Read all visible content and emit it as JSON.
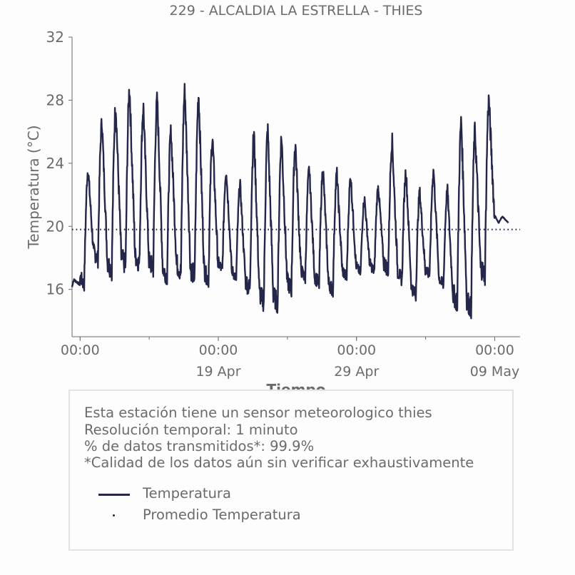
{
  "chart_data": {
    "type": "line",
    "title": "229 - ALCALDIA LA ESTRELLA - THIES",
    "xlabel": "Tiempo",
    "ylabel": "Temperatura (°C)",
    "ylim": [
      13,
      32
    ],
    "yticks": [
      16,
      20,
      24,
      28,
      32
    ],
    "x_start_day": "2024-04-09 10:00",
    "x_end_day": "2024-05-11 20:00",
    "xticks": [
      {
        "label": "00:00",
        "sublabel": "",
        "x": "2024-04-10 00:00"
      },
      {
        "label": "00:00",
        "sublabel": "19 Apr",
        "x": "2024-04-20 00:00"
      },
      {
        "label": "00:00",
        "sublabel": "29 Apr",
        "x": "2024-04-30 00:00"
      },
      {
        "label": "00:00",
        "sublabel": "09 May",
        "x": "2024-05-10 00:00"
      },
      {
        "label": "00:00",
        "sublabel": "",
        "x": "2024-05-20 00:00"
      }
    ],
    "series": [
      {
        "name": "Temperatura",
        "color": "#24264a",
        "daily": [
          {
            "day": "2024-04-09",
            "min": 15.4,
            "max": 16.6
          },
          {
            "day": "2024-04-10",
            "min": 16.3,
            "max": 23.6
          },
          {
            "day": "2024-04-11",
            "min": 17.9,
            "max": 26.6
          },
          {
            "day": "2024-04-12",
            "min": 17.2,
            "max": 27.6
          },
          {
            "day": "2024-04-13",
            "min": 17.5,
            "max": 28.7
          },
          {
            "day": "2024-04-14",
            "min": 17.6,
            "max": 27.5
          },
          {
            "day": "2024-04-15",
            "min": 17.3,
            "max": 28.0
          },
          {
            "day": "2024-04-16",
            "min": 16.8,
            "max": 26.0
          },
          {
            "day": "2024-04-17",
            "min": 17.1,
            "max": 28.6
          },
          {
            "day": "2024-04-18",
            "min": 16.8,
            "max": 28.3
          },
          {
            "day": "2024-04-19",
            "min": 16.6,
            "max": 25.5
          },
          {
            "day": "2024-04-20",
            "min": 17.2,
            "max": 23.5
          },
          {
            "day": "2024-04-21",
            "min": 16.7,
            "max": 22.6
          },
          {
            "day": "2024-04-22",
            "min": 16.0,
            "max": 25.8
          },
          {
            "day": "2024-04-23",
            "min": 15.2,
            "max": 26.0
          },
          {
            "day": "2024-04-24",
            "min": 15.1,
            "max": 25.6
          },
          {
            "day": "2024-04-25",
            "min": 16.0,
            "max": 25.2
          },
          {
            "day": "2024-04-26",
            "min": 16.7,
            "max": 23.6
          },
          {
            "day": "2024-04-27",
            "min": 16.3,
            "max": 23.6
          },
          {
            "day": "2024-04-28",
            "min": 15.9,
            "max": 23.3
          },
          {
            "day": "2024-04-29",
            "min": 16.7,
            "max": 23.1
          },
          {
            "day": "2024-04-30",
            "min": 17.0,
            "max": 21.7
          },
          {
            "day": "2024-05-01",
            "min": 17.1,
            "max": 22.5
          },
          {
            "day": "2024-05-02",
            "min": 17.2,
            "max": 25.4
          },
          {
            "day": "2024-05-03",
            "min": 16.6,
            "max": 23.5
          },
          {
            "day": "2024-05-04",
            "min": 15.6,
            "max": 22.1
          },
          {
            "day": "2024-05-05",
            "min": 16.9,
            "max": 23.5
          },
          {
            "day": "2024-05-06",
            "min": 16.2,
            "max": 22.3
          },
          {
            "day": "2024-05-07",
            "min": 15.2,
            "max": 26.6
          },
          {
            "day": "2024-05-08",
            "min": 14.8,
            "max": 26.0
          },
          {
            "day": "2024-05-09",
            "min": 16.9,
            "max": 28.0
          },
          {
            "day": "2024-05-10",
            "min": 20.2,
            "max": 20.6
          }
        ]
      },
      {
        "name": "Promedio Temperatura",
        "color": "#24264a",
        "style": "dotted",
        "value": 19.8
      }
    ],
    "grid": false,
    "legend": "inside info box, bottom-left"
  },
  "info": {
    "lines": [
      "Esta estación tiene un sensor meteorologico thies",
      "Resolución temporal: 1 minuto",
      "% de datos transmitidos*: 99.9%",
      "*Calidad de los datos aún sin verificar exhaustivamente"
    ],
    "legend": [
      {
        "label": "Temperatura",
        "kind": "line"
      },
      {
        "label": "Promedio Temperatura",
        "kind": "dot"
      }
    ]
  },
  "colors": {
    "series": "#24264a",
    "text": "#6b6b6b",
    "axis": "#6b6b6b",
    "box_border": "#e3e3e3"
  }
}
